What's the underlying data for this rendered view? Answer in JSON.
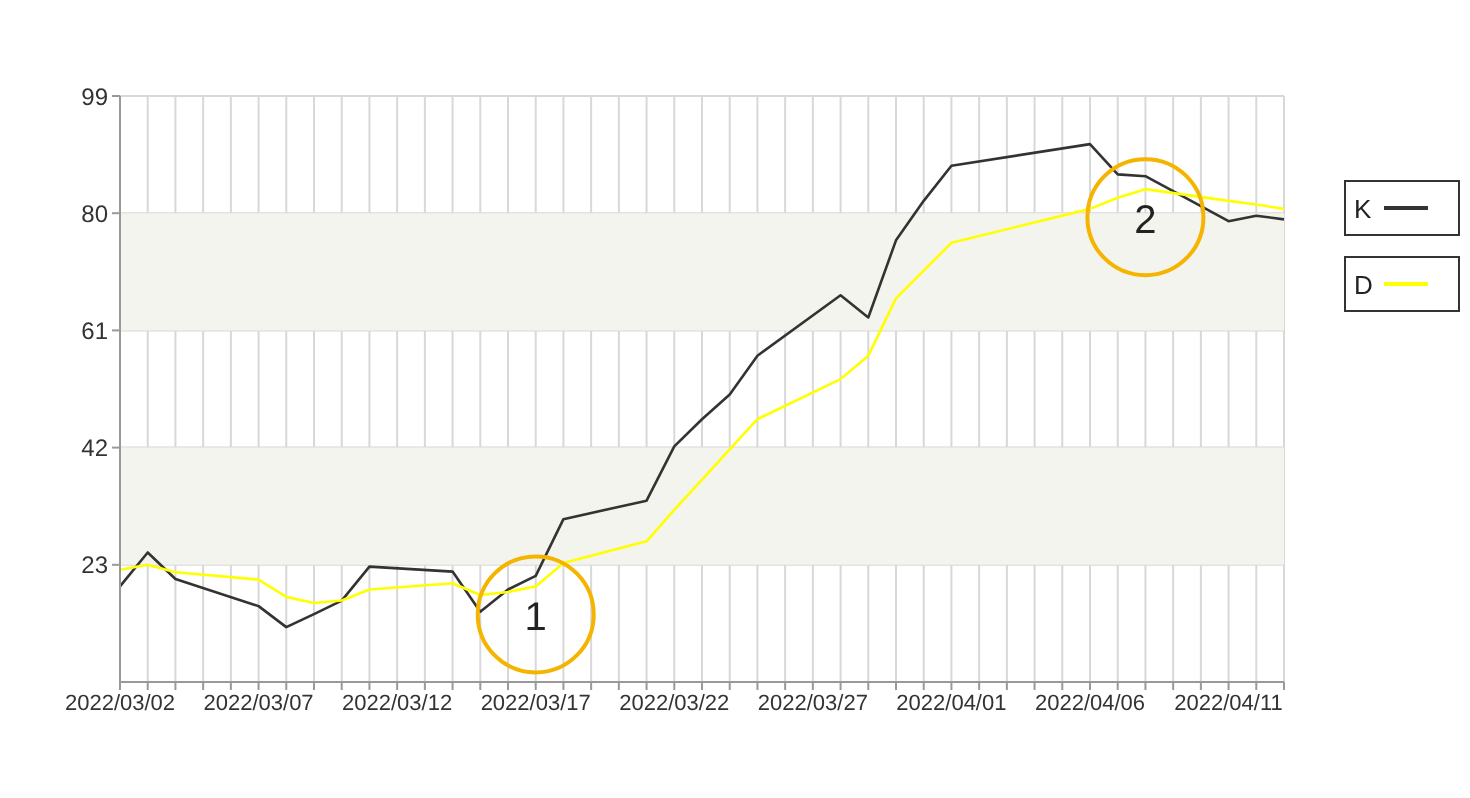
{
  "chart_data": {
    "type": "line",
    "x": [
      "2022-03-02",
      "2022-03-03",
      "2022-03-04",
      "2022-03-07",
      "2022-03-08",
      "2022-03-09",
      "2022-03-10",
      "2022-03-11",
      "2022-03-14",
      "2022-03-15",
      "2022-03-16",
      "2022-03-17",
      "2022-03-18",
      "2022-03-21",
      "2022-03-22",
      "2022-03-23",
      "2022-03-24",
      "2022-03-25",
      "2022-03-28",
      "2022-03-29",
      "2022-03-30",
      "2022-03-31",
      "2022-04-01",
      "2022-04-06",
      "2022-04-07",
      "2022-04-08",
      "2022-04-11",
      "2022-04-12",
      "2022-04-13"
    ],
    "series": [
      {
        "name": "K",
        "color": "#333333",
        "values": [
          19.5,
          25,
          20.7,
          16.3,
          12.9,
          15,
          17.2,
          22.7,
          21.9,
          15.4,
          19,
          21.2,
          30.4,
          33.4,
          42.2,
          46.6,
          50.6,
          56.9,
          66.7,
          63.1,
          75.6,
          82,
          87.7,
          91.2,
          86.3,
          86,
          78.7,
          79.6,
          79
        ]
      },
      {
        "name": "D",
        "color": "#ffff00",
        "values": [
          22.2,
          23,
          21.8,
          20.6,
          17.8,
          16.8,
          17.2,
          19,
          20,
          18.1,
          18.6,
          19.5,
          23.3,
          26.8,
          31.9,
          36.8,
          41.7,
          46.6,
          53.1,
          56.9,
          66.2,
          70.7,
          75.2,
          80.7,
          82.5,
          83.9,
          82,
          81.4,
          80.7
        ]
      }
    ],
    "xlim": [
      "2022-03-02",
      "2022-04-13"
    ],
    "xticks": [
      {
        "value": "2022-03-02",
        "label": "2022/03/02"
      },
      {
        "value": "2022-03-03",
        "label": null
      },
      {
        "value": "2022-03-04",
        "label": null
      },
      {
        "value": "2022-03-05",
        "label": null
      },
      {
        "value": "2022-03-06",
        "label": null
      },
      {
        "value": "2022-03-07",
        "label": "2022/03/07"
      },
      {
        "value": "2022-03-08",
        "label": null
      },
      {
        "value": "2022-03-09",
        "label": null
      },
      {
        "value": "2022-03-10",
        "label": null
      },
      {
        "value": "2022-03-11",
        "label": null
      },
      {
        "value": "2022-03-12",
        "label": "2022/03/12"
      },
      {
        "value": "2022-03-13",
        "label": null
      },
      {
        "value": "2022-03-14",
        "label": null
      },
      {
        "value": "2022-03-15",
        "label": null
      },
      {
        "value": "2022-03-16",
        "label": null
      },
      {
        "value": "2022-03-17",
        "label": "2022/03/17"
      },
      {
        "value": "2022-03-18",
        "label": null
      },
      {
        "value": "2022-03-19",
        "label": null
      },
      {
        "value": "2022-03-20",
        "label": null
      },
      {
        "value": "2022-03-21",
        "label": null
      },
      {
        "value": "2022-03-22",
        "label": "2022/03/22"
      },
      {
        "value": "2022-03-23",
        "label": null
      },
      {
        "value": "2022-03-24",
        "label": null
      },
      {
        "value": "2022-03-25",
        "label": null
      },
      {
        "value": "2022-03-26",
        "label": null
      },
      {
        "value": "2022-03-27",
        "label": "2022/03/27"
      },
      {
        "value": "2022-03-28",
        "label": null
      },
      {
        "value": "2022-03-29",
        "label": null
      },
      {
        "value": "2022-03-30",
        "label": null
      },
      {
        "value": "2022-03-31",
        "label": null
      },
      {
        "value": "2022-04-01",
        "label": "2022/04/01"
      },
      {
        "value": "2022-04-02",
        "label": null
      },
      {
        "value": "2022-04-03",
        "label": null
      },
      {
        "value": "2022-04-04",
        "label": null
      },
      {
        "value": "2022-04-05",
        "label": null
      },
      {
        "value": "2022-04-06",
        "label": "2022/04/06"
      },
      {
        "value": "2022-04-07",
        "label": null
      },
      {
        "value": "2022-04-08",
        "label": null
      },
      {
        "value": "2022-04-09",
        "label": null
      },
      {
        "value": "2022-04-10",
        "label": null
      },
      {
        "value": "2022-04-11",
        "label": "2022/04/11"
      },
      {
        "value": "2022-04-12",
        "label": null
      },
      {
        "value": "2022-04-13",
        "label": null
      }
    ],
    "ylim": [
      4,
      99
    ],
    "yticks": [
      23,
      42,
      61,
      80,
      99
    ],
    "bands": [
      {
        "axis": "y",
        "from": 23,
        "to": 42,
        "color": "#f4f4ee"
      },
      {
        "axis": "y",
        "from": 61,
        "to": 80,
        "color": "#f4f4ee"
      }
    ],
    "annotations": [
      {
        "text": "1",
        "x": "2022-03-17",
        "y": 19.5
      },
      {
        "text": "2",
        "x": "2022-04-08",
        "y": 83.9
      }
    ],
    "grid": true,
    "legend": "right",
    "marker": "none",
    "line_style": "solid"
  }
}
